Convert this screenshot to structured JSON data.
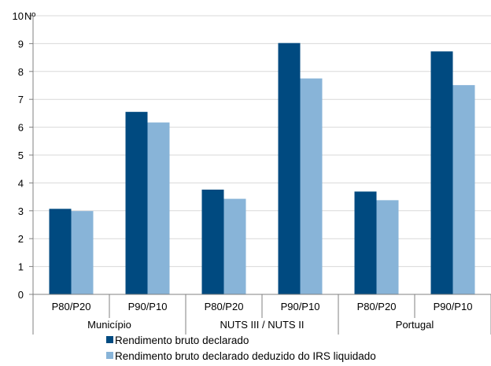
{
  "chart_data": {
    "type": "bar",
    "ylabel": "Nº",
    "ylim": [
      0,
      10
    ],
    "yticks": [
      0,
      1,
      2,
      3,
      4,
      5,
      6,
      7,
      8,
      9,
      10
    ],
    "grid": true,
    "legend_position": "bottom",
    "categories": [
      "P80/P20",
      "P90/P10",
      "P80/P20",
      "P90/P10",
      "P80/P20",
      "P90/P10"
    ],
    "groups": [
      {
        "label": "Município",
        "span": 2
      },
      {
        "label": "NUTS III / NUTS II",
        "span": 2
      },
      {
        "label": "Portugal",
        "span": 2
      }
    ],
    "series": [
      {
        "name": "Rendimento bruto declarado",
        "color": "#004a80",
        "values": [
          3.07,
          6.55,
          3.76,
          9.02,
          3.69,
          8.72
        ]
      },
      {
        "name": "Rendimento bruto declarado deduzido do IRS liquidado",
        "color": "#88b4d8",
        "values": [
          2.99,
          6.17,
          3.43,
          7.75,
          3.38,
          7.51
        ]
      }
    ]
  }
}
